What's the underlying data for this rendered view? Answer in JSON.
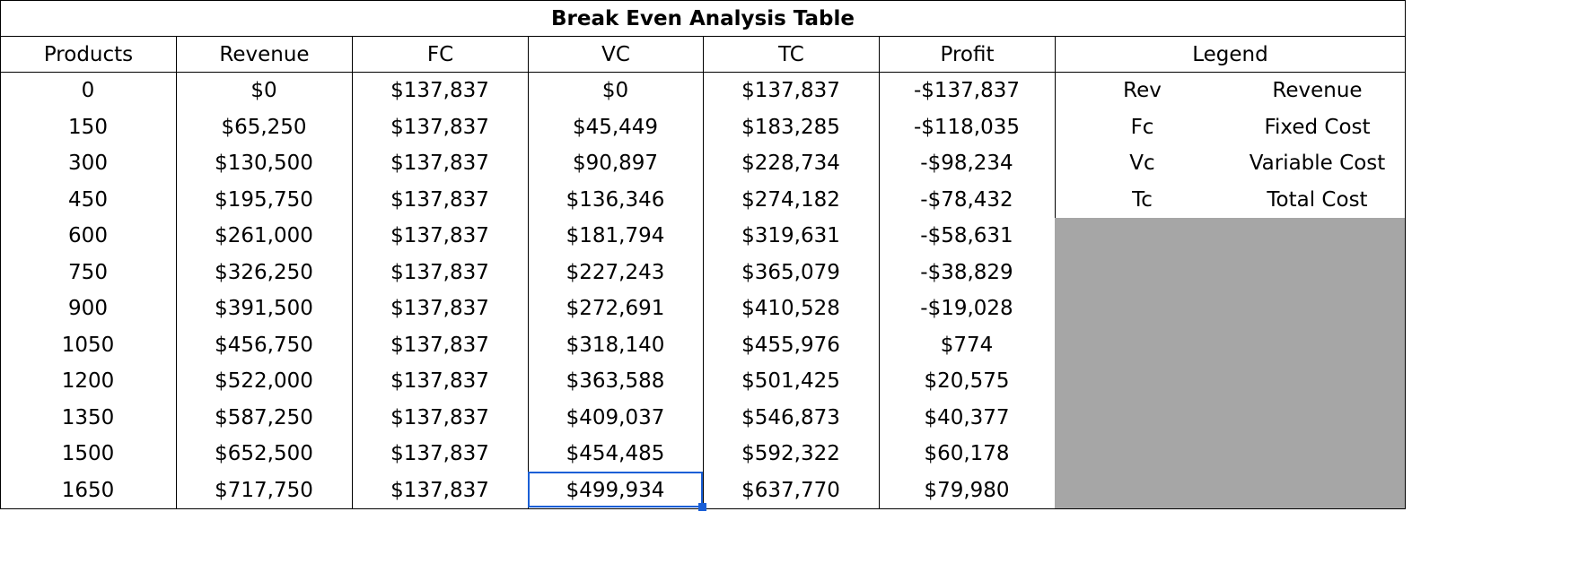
{
  "table": {
    "title": "Break Even Analysis Table",
    "headers": [
      "Products",
      "Revenue",
      "FC",
      "VC",
      "TC",
      "Profit"
    ],
    "legend_header": "Legend",
    "rows": [
      [
        "0",
        "$0",
        "$137,837",
        "$0",
        "$137,837",
        "-$137,837"
      ],
      [
        "150",
        "$65,250",
        "$137,837",
        "$45,449",
        "$183,285",
        "-$118,035"
      ],
      [
        "300",
        "$130,500",
        "$137,837",
        "$90,897",
        "$228,734",
        "-$98,234"
      ],
      [
        "450",
        "$195,750",
        "$137,837",
        "$136,346",
        "$274,182",
        "-$78,432"
      ],
      [
        "600",
        "$261,000",
        "$137,837",
        "$181,794",
        "$319,631",
        "-$58,631"
      ],
      [
        "750",
        "$326,250",
        "$137,837",
        "$227,243",
        "$365,079",
        "-$38,829"
      ],
      [
        "900",
        "$391,500",
        "$137,837",
        "$272,691",
        "$410,528",
        "-$19,028"
      ],
      [
        "1050",
        "$456,750",
        "$137,837",
        "$318,140",
        "$455,976",
        "$774"
      ],
      [
        "1200",
        "$522,000",
        "$137,837",
        "$363,588",
        "$501,425",
        "$20,575"
      ],
      [
        "1350",
        "$587,250",
        "$137,837",
        "$409,037",
        "$546,873",
        "$40,377"
      ],
      [
        "1500",
        "$652,500",
        "$137,837",
        "$454,485",
        "$592,322",
        "$60,178"
      ],
      [
        "1650",
        "$717,750",
        "$137,837",
        "$499,934",
        "$637,770",
        "$79,980"
      ]
    ],
    "legend": [
      [
        "Rev",
        "Revenue"
      ],
      [
        "Fc",
        "Fixed Cost"
      ],
      [
        "Vc",
        "Variable Cost"
      ],
      [
        "Tc",
        "Total Cost"
      ]
    ]
  },
  "colors": {
    "selection": "#1a5fd6",
    "legend_fill": "#a6a6a6"
  }
}
